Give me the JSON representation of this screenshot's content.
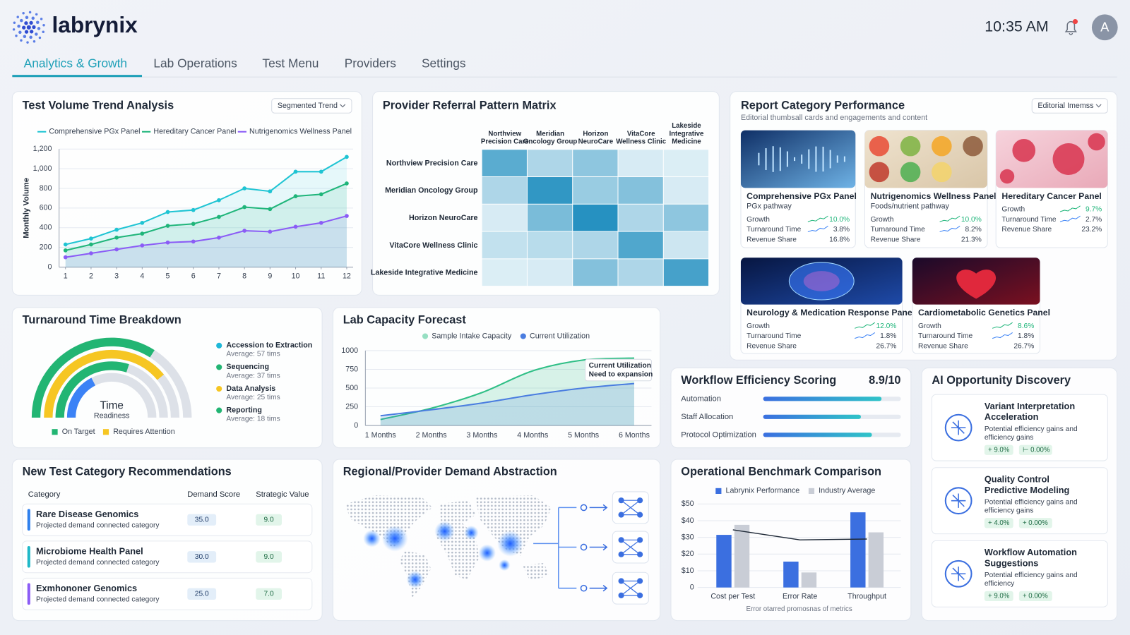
{
  "header": {
    "logo": "labrynix",
    "time": "10:35 AM",
    "avatar": "A"
  },
  "nav": {
    "tabs": [
      "Analytics & Growth",
      "Lab Operations",
      "Test Menu",
      "Providers",
      "Settings"
    ],
    "active": 0
  },
  "chart_data": [
    {
      "type": "line",
      "title": "Test Volume Trend Analysis",
      "dropdown": "Segmented Trend",
      "ylabel": "Monthly Volume",
      "x": [
        1,
        2,
        3,
        4,
        5,
        6,
        7,
        8,
        9,
        10,
        11,
        12
      ],
      "xlim": [
        0.75,
        12.25
      ],
      "xticks": [
        1,
        2,
        3,
        4,
        5,
        6,
        7,
        8,
        9,
        10,
        11,
        12
      ],
      "ylim": [
        0,
        1200
      ],
      "yticks": [
        0,
        200,
        400,
        600,
        800,
        {
          "value": 1000,
          "label": "1,000"
        },
        {
          "value": 1200,
          "label": "1,200"
        }
      ],
      "grid": true,
      "legend": "top",
      "series": [
        {
          "name": "Comprehensive PGx Panel",
          "color": "#1fc4d3",
          "values": [
            230,
            290,
            380,
            450,
            560,
            580,
            680,
            800,
            770,
            970,
            970,
            1120
          ]
        },
        {
          "name": "Hereditary Cancer Panel",
          "color": "#1fb57a",
          "values": [
            170,
            230,
            300,
            340,
            420,
            440,
            510,
            610,
            590,
            720,
            740,
            850
          ]
        },
        {
          "name": "Nutrigenomics Wellness Panel",
          "color": "#8b5cf6",
          "values": [
            100,
            140,
            180,
            220,
            250,
            260,
            300,
            370,
            360,
            410,
            450,
            520
          ]
        }
      ]
    },
    {
      "type": "heatmap",
      "title": "Provider Referral Pattern Matrix",
      "rows": [
        "Northview Precision Care",
        "Meridian Oncology Group",
        "Horizon NeuroCare",
        "VitaCore Wellness Clinic",
        "Lakeside Integrative Medicine"
      ],
      "columns": [
        [
          "Northview",
          "Precision Care"
        ],
        [
          "Meridian",
          "Oncology Group"
        ],
        [
          "Horizon",
          "NeuroCare"
        ],
        [
          "VitaCore",
          "Wellness Clinic"
        ],
        [
          "Lakeside",
          "Integrative",
          "Medicine"
        ]
      ],
      "zlim": [
        0,
        100
      ],
      "values": [
        [
          70,
          30,
          45,
          10,
          8
        ],
        [
          30,
          90,
          40,
          50,
          10
        ],
        [
          10,
          55,
          95,
          30,
          45
        ],
        [
          20,
          25,
          30,
          75,
          15
        ],
        [
          8,
          10,
          50,
          30,
          80
        ]
      ]
    },
    {
      "type": "line",
      "title": "Lab Capacity Forecast",
      "categories": [
        "1 Months",
        "2 Months",
        "3 Months",
        "4 Months",
        "5 Months",
        "6 Months"
      ],
      "ylim": [
        0,
        1000
      ],
      "yticks": [
        0,
        250,
        500,
        750,
        1000
      ],
      "grid": true,
      "legend": "top",
      "smooth": true,
      "annotation": [
        "Current Utilization",
        "Need to expansion"
      ],
      "series": [
        {
          "name": "Sample Intake Capacity",
          "color": "#2fbf86",
          "values": [
            80,
            230,
            440,
            730,
            875,
            900
          ]
        },
        {
          "name": "Current Utilization",
          "color": "#4a7de0",
          "values": [
            130,
            210,
            300,
            410,
            500,
            560
          ]
        }
      ]
    },
    {
      "type": "hbar",
      "title": "Workflow Efficiency Scoring",
      "score": "8.9/10",
      "categories": [
        "Automation",
        "Staff Allocation",
        "Protocol Optimization"
      ],
      "values": [
        86,
        71,
        79
      ],
      "xlim": [
        0,
        100
      ]
    },
    {
      "type": "bar",
      "title": "Operational Benchmark Comparison",
      "categories": [
        "Cost per Test",
        "Error Rate",
        "Throughput"
      ],
      "ylim": [
        0,
        50
      ],
      "yticks": [
        0,
        {
          "value": 10,
          "label": "$10"
        },
        {
          "value": 20,
          "label": "$20"
        },
        {
          "value": 30,
          "label": "$30"
        },
        {
          "value": 40,
          "label": "$40"
        },
        {
          "value": 50,
          "label": "$50"
        }
      ],
      "grid": true,
      "legend": "top",
      "series": [
        {
          "name": "Labrynix Performance",
          "color": "#3b6fe0",
          "values": [
            31.5,
            15.5,
            45
          ]
        },
        {
          "name": "Industry Average",
          "color": "#c9cdd6",
          "values": [
            37.5,
            9,
            33
          ]
        }
      ],
      "line_values": [
        34.5,
        28.5,
        29
      ],
      "line_color": "#1f2937",
      "footnote": "Error otarred promosnas of metrics"
    }
  ],
  "turnaround": {
    "title": "Turnaround Time Breakdown",
    "center": [
      "Time",
      "Readiness"
    ],
    "items": [
      {
        "name": "Accession to Extraction",
        "detail": "Average: 57 tims",
        "color": "#1fb8d8"
      },
      {
        "name": "Sequencing",
        "detail": "Average: 37 tims",
        "color": "#22b573"
      },
      {
        "name": "Data Analysis",
        "detail": "Average: 25 tims",
        "color": "#f6c623"
      },
      {
        "name": "Reporting",
        "detail": "Average: 18 tims",
        "color": "#22b573"
      }
    ],
    "legend": [
      {
        "name": "On Target",
        "color": "#22b573"
      },
      {
        "name": "Requires Attention",
        "color": "#f6c623"
      }
    ]
  },
  "report_category": {
    "title": "Report Category Performance",
    "subtitle": "Editorial thumbsall cards and engagements and content",
    "dropdown": "Editorial Imemss",
    "cards": [
      {
        "title": "Comprehensive PGx Panel",
        "subtitle": "PGx pathway",
        "metrics": [
          {
            "label": "Growth",
            "value": "10.0%"
          },
          {
            "label": "Turnaround Time",
            "value": "3.8%"
          },
          {
            "label": "Revenue Share",
            "value": "16.8%"
          }
        ]
      },
      {
        "title": "Nutrigenomics Wellness Panel",
        "subtitle": "Foods/nutrient pathway",
        "metrics": [
          {
            "label": "Growth",
            "value": "10.0%"
          },
          {
            "label": "Turnaround Time",
            "value": "8.2%"
          },
          {
            "label": "Revenue Share",
            "value": "21.3%"
          }
        ]
      },
      {
        "title": "Hereditary Cancer Panel",
        "metrics": [
          {
            "label": "Growth",
            "value": "9.7%"
          },
          {
            "label": "Turnaround Time",
            "value": "2.7%"
          },
          {
            "label": "Revenue Share",
            "value": "23.2%"
          }
        ]
      },
      {
        "title": "Neurology & Medication Response Panel",
        "metrics": [
          {
            "label": "Growth",
            "value": "12.0%"
          },
          {
            "label": "Turnaround Time",
            "value": "1.8%"
          },
          {
            "label": "Revenue Share",
            "value": "26.7%"
          }
        ]
      },
      {
        "title": "Cardiometabolic Genetics Panel",
        "metrics": [
          {
            "label": "Growth",
            "value": "8.6%"
          },
          {
            "label": "Turnaround Time",
            "value": "1.8%"
          },
          {
            "label": "Revenue Share",
            "value": "26.7%"
          }
        ]
      }
    ]
  },
  "recommendations": {
    "title": "New Test Category Recommendations",
    "headers": [
      "Category",
      "Demand Score",
      "Strategic Value"
    ],
    "rows": [
      {
        "name": "Rare Disease Genomics",
        "note": "Projected demand connected category",
        "demand": "35.0",
        "value": "9.0",
        "color": "#2f80ed"
      },
      {
        "name": "Microbiome Health Panel",
        "note": "Projected demand connected category",
        "demand": "30.0",
        "value": "9.0",
        "color": "#1fb8c8"
      },
      {
        "name": "Exmhononer Genomics",
        "note": "Projected demand connected category",
        "demand": "25.0",
        "value": "7.0",
        "color": "#8b5cf6"
      }
    ]
  },
  "regional": {
    "title": "Regional/Provider Demand Abstraction"
  },
  "ai_opportunity": {
    "title": "AI Opportunity Discovery",
    "cards": [
      {
        "title": [
          "Variant Interpretation",
          "Acceleration"
        ],
        "desc": [
          "Potential efficiency gains and",
          "efficiency gains"
        ],
        "chips": [
          "+ 9.0%",
          "⊢ 0.00%"
        ]
      },
      {
        "title": [
          "Quality Control",
          "Predictive Modeling"
        ],
        "desc": [
          "Potential efficiency gains and",
          "efficiency gains"
        ],
        "chips": [
          "+ 4.0%",
          "+ 0.00%"
        ]
      },
      {
        "title": [
          "Workflow Automation",
          "Suggestions"
        ],
        "desc": [
          "Potential efficiency gains and",
          "efficiency"
        ],
        "chips": [
          "+ 9.0%",
          "+ 0.00%"
        ]
      }
    ]
  }
}
